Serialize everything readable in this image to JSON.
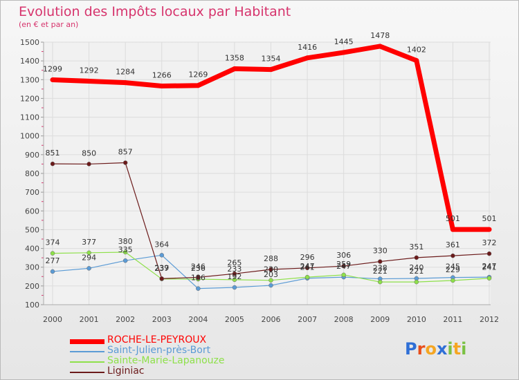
{
  "chart_data": {
    "type": "line",
    "title": "Evolution des Impôts locaux par Habitant",
    "subtitle": "(en € et par an)",
    "x": [
      "2000",
      "2001",
      "2002",
      "2003",
      "2004",
      "2005",
      "2006",
      "2007",
      "2008",
      "2009",
      "2010",
      "2011",
      "2012"
    ],
    "ylim": [
      100,
      1500
    ],
    "yticks": [
      100,
      200,
      300,
      400,
      500,
      600,
      700,
      800,
      900,
      1000,
      1100,
      1200,
      1300,
      1400,
      1500
    ],
    "grid": true,
    "legend_position": "bottom-left",
    "series": [
      {
        "name": "ROCHE-LE-PEYROUX",
        "color": "#ff0000",
        "values": [
          1299,
          1292,
          1284,
          1266,
          1269,
          1358,
          1354,
          1416,
          1445,
          1478,
          1402,
          501,
          501
        ],
        "labels": [
          "1299",
          "1292",
          "1284",
          "1266",
          "1269",
          "1358",
          "1354",
          "1416",
          "1445",
          "1478",
          "1402",
          "501",
          "501"
        ]
      },
      {
        "name": "Saint-Julien-près-Bort",
        "color": "#5b9bd5",
        "values": [
          277,
          294,
          335,
          364,
          186,
          192,
          203,
          241,
          247,
          238,
          240,
          245,
          247
        ],
        "labels": [
          "277",
          "294",
          "335",
          "364",
          "186",
          "192",
          "203",
          "241",
          "247",
          "238",
          "240",
          "245",
          "247"
        ]
      },
      {
        "name": "Sainte-Marie-Lapanouze",
        "color": "#8ee04a",
        "values": [
          374,
          377,
          380,
          237,
          236,
          233,
          230,
          247,
          259,
          221,
          221,
          229,
          241
        ],
        "labels": [
          "374",
          "377",
          "380",
          "237",
          "236",
          "233",
          "230",
          "247",
          "259",
          "221",
          "221",
          "229",
          "241"
        ]
      },
      {
        "name": "Liginiac",
        "color": "#6b1a1a",
        "values": [
          851,
          850,
          857,
          239,
          246,
          265,
          288,
          296,
          306,
          330,
          351,
          361,
          372
        ],
        "labels": [
          "851",
          "850",
          "857",
          "239",
          "246",
          "265",
          "288",
          "296",
          "306",
          "330",
          "351",
          "361",
          "372"
        ]
      }
    ]
  },
  "branding": {
    "letters": [
      "P",
      "r",
      "o",
      "x",
      "i",
      "t",
      "i"
    ],
    "colors": [
      "#2f6fd6",
      "#e84e1b",
      "#f5a623",
      "#2f6fd6",
      "#7ac143",
      "#f5a623",
      "#7ac143"
    ]
  }
}
